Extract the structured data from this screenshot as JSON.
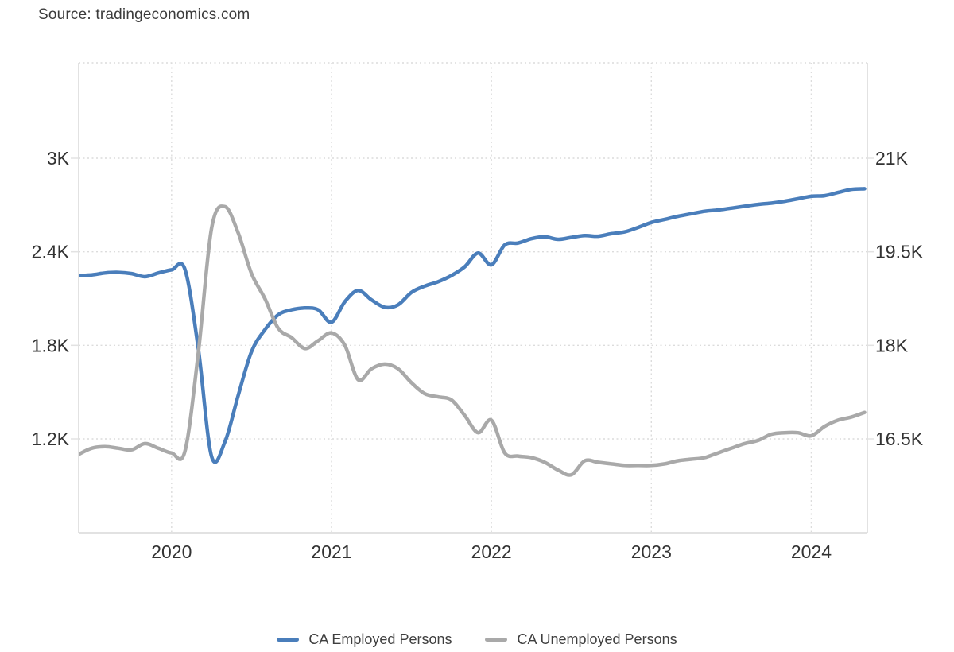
{
  "source_label": "Source: tradingeconomics.com",
  "colors": {
    "employed_line": "#4A7EBB",
    "unemployed_line": "#A9A9A9",
    "axis_text": "#333333",
    "grid": "#DCDCDC",
    "border": "#E2E2E2",
    "background": "#FFFFFF"
  },
  "chart_data": {
    "type": "line",
    "title": "",
    "xlabel": "",
    "ylabel_left": "",
    "ylabel_right": "",
    "grid": true,
    "legend_position": "bottom",
    "x": [
      "2019-06",
      "2019-07",
      "2019-08",
      "2019-09",
      "2019-10",
      "2019-11",
      "2019-12",
      "2020-01",
      "2020-02",
      "2020-03",
      "2020-04",
      "2020-05",
      "2020-06",
      "2020-07",
      "2020-08",
      "2020-09",
      "2020-10",
      "2020-11",
      "2020-12",
      "2021-01",
      "2021-02",
      "2021-03",
      "2021-04",
      "2021-05",
      "2021-06",
      "2021-07",
      "2021-08",
      "2021-09",
      "2021-10",
      "2021-11",
      "2021-12",
      "2022-01",
      "2022-02",
      "2022-03",
      "2022-04",
      "2022-05",
      "2022-06",
      "2022-07",
      "2022-08",
      "2022-09",
      "2022-10",
      "2022-11",
      "2022-12",
      "2023-01",
      "2023-02",
      "2023-03",
      "2023-04",
      "2023-05",
      "2023-06",
      "2023-07",
      "2023-08",
      "2023-09",
      "2023-10",
      "2023-11",
      "2023-12",
      "2024-01",
      "2024-02",
      "2024-03",
      "2024-04",
      "2024-05"
    ],
    "series": [
      {
        "name": "CA Employed Persons",
        "axis": "right",
        "color": "#4A7EBB",
        "values": [
          19120,
          19130,
          19160,
          19170,
          19150,
          19100,
          19160,
          19210,
          19220,
          17950,
          16220,
          16450,
          17200,
          17900,
          18250,
          18490,
          18570,
          18600,
          18570,
          18370,
          18700,
          18880,
          18730,
          18610,
          18650,
          18850,
          18950,
          19020,
          19120,
          19260,
          19480,
          19290,
          19610,
          19640,
          19710,
          19740,
          19700,
          19730,
          19760,
          19750,
          19790,
          19820,
          19890,
          19970,
          20020,
          20070,
          20110,
          20150,
          20170,
          20200,
          20230,
          20260,
          20280,
          20310,
          20350,
          20390,
          20400,
          20450,
          20500,
          20510
        ]
      },
      {
        "name": "CA Unemployed Persons",
        "axis": "left",
        "color": "#A9A9A9",
        "values": [
          1100,
          1140,
          1150,
          1140,
          1130,
          1170,
          1140,
          1110,
          1120,
          1750,
          2550,
          2690,
          2520,
          2260,
          2100,
          1910,
          1850,
          1780,
          1830,
          1880,
          1800,
          1580,
          1650,
          1680,
          1650,
          1560,
          1490,
          1470,
          1450,
          1350,
          1240,
          1320,
          1110,
          1090,
          1080,
          1050,
          1000,
          970,
          1060,
          1050,
          1040,
          1030,
          1030,
          1030,
          1040,
          1060,
          1070,
          1080,
          1110,
          1140,
          1170,
          1190,
          1230,
          1240,
          1240,
          1220,
          1280,
          1320,
          1340,
          1370
        ]
      }
    ],
    "left_axis": {
      "tick_values": [
        3000,
        2400,
        1800,
        1200
      ],
      "tick_labels": [
        "3K",
        "2.4K",
        "1.8K",
        "1.2K"
      ],
      "range": [
        600,
        3610
      ]
    },
    "right_axis": {
      "tick_values": [
        21000,
        19500,
        18000,
        16500
      ],
      "tick_labels": [
        "21K",
        "19.5K",
        "18K",
        "16.5K"
      ],
      "range": [
        15000,
        22530
      ]
    },
    "x_axis": {
      "tick_labels": [
        "2020",
        "2021",
        "2022",
        "2023",
        "2024"
      ],
      "tick_indices": [
        7,
        19,
        31,
        43,
        55
      ]
    }
  }
}
